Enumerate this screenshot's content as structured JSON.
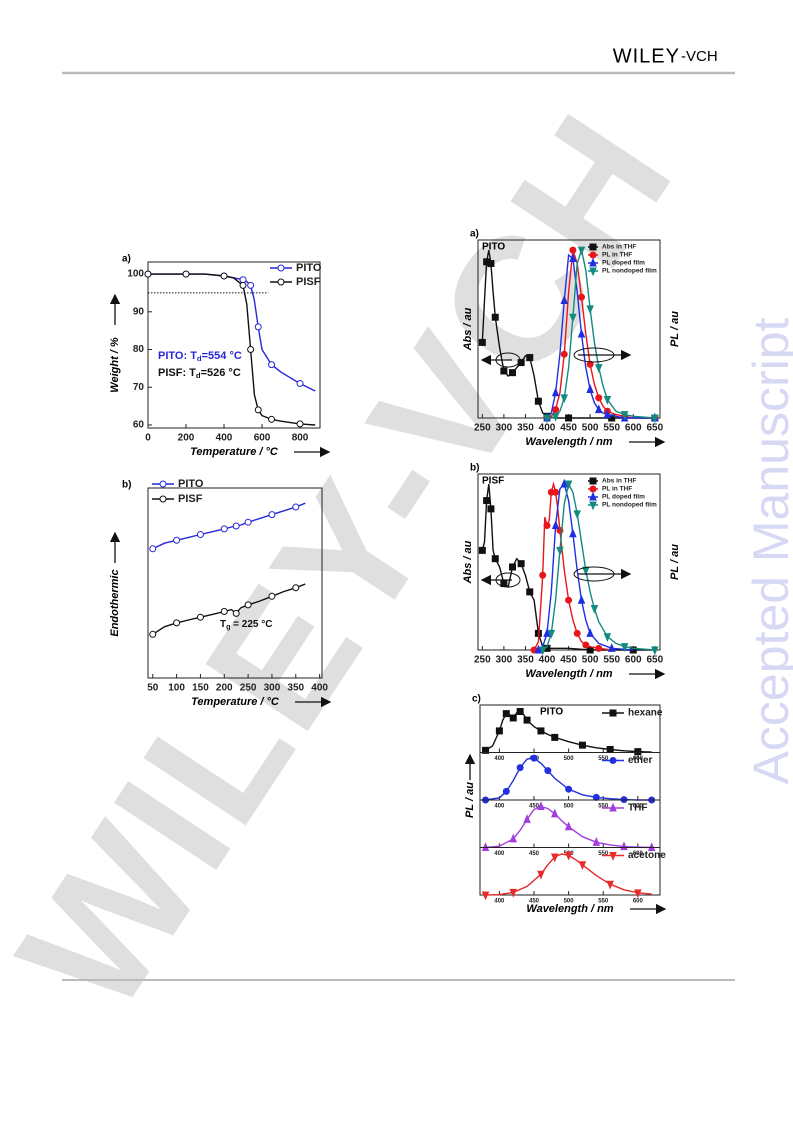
{
  "header": {
    "publisher": "WILEY",
    "suffix": "-VCH"
  },
  "watermark": {
    "text": "WILEY-VCH",
    "side": "Accepted Manuscript"
  },
  "chart_data": [
    {
      "type": "line",
      "panel": "a)",
      "xlabel": "Temperature / °C",
      "ylabel": "Weight / %",
      "xlim": [
        0,
        905
      ],
      "xticks": [
        0,
        200,
        400,
        600,
        800
      ],
      "ylim": [
        59.2,
        103.2
      ],
      "yticks": [
        60,
        70,
        80,
        90,
        100
      ],
      "reference_line": 95,
      "legend": "upper right",
      "series": [
        {
          "name": "PITO",
          "color": "#2727d8",
          "marker": "circle",
          "x": [
            0,
            100,
            200,
            300,
            400,
            450,
            500,
            520,
            540,
            560,
            580,
            600,
            650,
            700,
            800,
            880
          ],
          "values": [
            100,
            100,
            100,
            100,
            99.5,
            99,
            98.5,
            98,
            97,
            93,
            86,
            80,
            76,
            74,
            71,
            69
          ]
        },
        {
          "name": "PISF",
          "color": "#111111",
          "marker": "circle",
          "x": [
            0,
            100,
            200,
            300,
            400,
            450,
            500,
            520,
            540,
            560,
            580,
            600,
            650,
            700,
            800,
            880
          ],
          "values": [
            100,
            100,
            100,
            100,
            99.5,
            99,
            97,
            92,
            80,
            68,
            64,
            62.5,
            61.5,
            61,
            60.3,
            60
          ]
        }
      ],
      "annotations": [
        {
          "text": "PITO: T",
          "sub": "d",
          "rest": "=554 °C",
          "color": "#2727d8"
        },
        {
          "text": "PISF: T",
          "sub": "d",
          "rest": "=526 °C",
          "color": "#111111"
        }
      ]
    },
    {
      "type": "line",
      "panel": "b)",
      "xlabel": "Temperature / °C",
      "ylabel": "Endothermic",
      "xlim": [
        40,
        405
      ],
      "xticks": [
        50,
        100,
        150,
        200,
        250,
        300,
        350,
        400
      ],
      "ylim": [
        0,
        10
      ],
      "legend": "upper left",
      "series": [
        {
          "name": "PITO",
          "color": "#2727d8",
          "marker": "circle",
          "x": [
            50,
            75,
            100,
            125,
            150,
            175,
            200,
            215,
            225,
            235,
            250,
            275,
            300,
            325,
            350,
            370
          ],
          "values": [
            6.8,
            7.1,
            7.25,
            7.4,
            7.55,
            7.7,
            7.85,
            7.95,
            8.0,
            8.05,
            8.2,
            8.4,
            8.6,
            8.8,
            9.0,
            9.2
          ]
        },
        {
          "name": "PISF",
          "color": "#111111",
          "marker": "circle",
          "x": [
            50,
            75,
            100,
            125,
            150,
            175,
            200,
            215,
            225,
            235,
            250,
            275,
            300,
            325,
            350,
            370
          ],
          "values": [
            2.3,
            2.7,
            2.9,
            3.05,
            3.2,
            3.35,
            3.5,
            3.6,
            3.4,
            3.7,
            3.85,
            4.05,
            4.3,
            4.55,
            4.75,
            4.95
          ]
        }
      ],
      "annotations": [
        {
          "text": "T",
          "sub": "g",
          "rest": " = 225 °C",
          "color": "#111111"
        }
      ]
    },
    {
      "type": "line",
      "panel": "a)",
      "name": "PITO",
      "xlabel": "Wavelength / nm",
      "ylabel": "Abs / au",
      "y2label": "PL / au",
      "xlim": [
        240,
        662
      ],
      "xticks": [
        250,
        300,
        350,
        400,
        450,
        500,
        550,
        600,
        650
      ],
      "ylim": [
        0,
        1.06
      ],
      "legend": "upper right",
      "series": [
        {
          "name": "Abs in THF",
          "color": "#111111",
          "marker": "square",
          "x": [
            250,
            255,
            260,
            265,
            270,
            275,
            280,
            290,
            300,
            310,
            320,
            330,
            340,
            350,
            360,
            370,
            380,
            390,
            400,
            420,
            450,
            500,
            550,
            600,
            650
          ],
          "values": [
            0.45,
            0.7,
            0.93,
            1.0,
            0.92,
            0.75,
            0.6,
            0.42,
            0.28,
            0.25,
            0.27,
            0.3,
            0.33,
            0.37,
            0.36,
            0.25,
            0.1,
            0.03,
            0.01,
            0,
            0,
            0,
            0,
            0,
            0
          ]
        },
        {
          "name": "PL in THF",
          "color": "#e8161b",
          "marker": "circle",
          "x": [
            400,
            410,
            420,
            430,
            440,
            450,
            460,
            470,
            480,
            490,
            500,
            510,
            520,
            530,
            540,
            560,
            580,
            600,
            650
          ],
          "values": [
            0,
            0.01,
            0.05,
            0.15,
            0.38,
            0.75,
            1.0,
            0.92,
            0.72,
            0.5,
            0.32,
            0.2,
            0.12,
            0.07,
            0.04,
            0.02,
            0.01,
            0,
            0
          ]
        },
        {
          "name": "PL doped film",
          "color": "#1f2fe0",
          "marker": "triangle-up",
          "x": [
            400,
            410,
            420,
            430,
            440,
            450,
            460,
            470,
            480,
            490,
            500,
            510,
            520,
            530,
            540,
            560,
            580,
            600,
            650
          ],
          "values": [
            0,
            0.03,
            0.15,
            0.38,
            0.7,
            0.97,
            0.95,
            0.75,
            0.5,
            0.3,
            0.17,
            0.09,
            0.05,
            0.03,
            0.02,
            0.01,
            0,
            0,
            0
          ]
        },
        {
          "name": "PL nondoped film",
          "color": "#138a80",
          "marker": "triangle-down",
          "x": [
            400,
            410,
            420,
            430,
            440,
            450,
            460,
            470,
            480,
            490,
            500,
            510,
            520,
            530,
            540,
            560,
            580,
            600,
            650
          ],
          "values": [
            0,
            0,
            0.01,
            0.04,
            0.12,
            0.3,
            0.6,
            0.92,
            1.0,
            0.88,
            0.65,
            0.45,
            0.3,
            0.19,
            0.11,
            0.04,
            0.02,
            0.01,
            0
          ]
        }
      ]
    },
    {
      "type": "line",
      "panel": "b)",
      "name": "PISF",
      "xlabel": "Wavelength / nm",
      "ylabel": "Abs / au",
      "y2label": "PL / au",
      "xlim": [
        240,
        662
      ],
      "xticks": [
        250,
        300,
        350,
        400,
        450,
        500,
        550,
        600,
        650
      ],
      "ylim": [
        0,
        1.06
      ],
      "legend": "upper right",
      "series": [
        {
          "name": "Abs in THF",
          "color": "#111111",
          "marker": "square",
          "x": [
            250,
            255,
            260,
            265,
            270,
            275,
            280,
            290,
            300,
            310,
            320,
            330,
            340,
            350,
            360,
            370,
            380,
            390,
            400,
            450,
            500,
            550,
            600,
            650
          ],
          "values": [
            0.6,
            0.65,
            0.9,
            1.0,
            0.85,
            0.6,
            0.55,
            0.5,
            0.4,
            0.38,
            0.5,
            0.55,
            0.52,
            0.45,
            0.35,
            0.3,
            0.1,
            0.02,
            0.01,
            0.01,
            0,
            0,
            0,
            0
          ]
        },
        {
          "name": "PL in THF",
          "color": "#e8161b",
          "marker": "circle",
          "x": [
            370,
            380,
            390,
            395,
            400,
            405,
            410,
            415,
            420,
            425,
            430,
            440,
            450,
            460,
            470,
            480,
            490,
            500,
            520,
            550
          ],
          "values": [
            0,
            0.05,
            0.45,
            0.8,
            0.75,
            0.78,
            0.95,
            1.0,
            0.95,
            0.85,
            0.72,
            0.48,
            0.3,
            0.18,
            0.1,
            0.05,
            0.03,
            0.02,
            0.01,
            0
          ]
        },
        {
          "name": "PL doped film",
          "color": "#1f2fe0",
          "marker": "triangle-up",
          "x": [
            380,
            390,
            400,
            410,
            420,
            430,
            440,
            450,
            460,
            470,
            480,
            490,
            500,
            520,
            550,
            600
          ],
          "values": [
            0,
            0.02,
            0.1,
            0.35,
            0.75,
            0.97,
            1.0,
            0.9,
            0.7,
            0.48,
            0.3,
            0.18,
            0.1,
            0.04,
            0.01,
            0
          ]
        },
        {
          "name": "PL nondoped film",
          "color": "#138a80",
          "marker": "triangle-down",
          "x": [
            390,
            400,
            410,
            420,
            430,
            440,
            450,
            460,
            470,
            480,
            490,
            500,
            510,
            520,
            540,
            560,
            580,
            600,
            650
          ],
          "values": [
            0,
            0.02,
            0.1,
            0.3,
            0.6,
            0.88,
            1.0,
            0.95,
            0.82,
            0.65,
            0.48,
            0.35,
            0.25,
            0.17,
            0.08,
            0.04,
            0.02,
            0.01,
            0
          ]
        }
      ]
    },
    {
      "type": "panels",
      "panel": "c)",
      "name": "PITO",
      "xlabel": "Wavelength / nm",
      "ylabel": "PL / au",
      "xlim": [
        372,
        632
      ],
      "xticks": [
        400,
        450,
        500,
        550,
        600
      ],
      "ylim": [
        0,
        1.1
      ],
      "legend": "upper right",
      "series": [
        {
          "name": "hexane",
          "color": "#111111",
          "marker": "square",
          "x": [
            380,
            390,
            400,
            405,
            410,
            415,
            420,
            425,
            430,
            435,
            440,
            450,
            460,
            470,
            480,
            500,
            520,
            540,
            560,
            580,
            600,
            620
          ],
          "values": [
            0.05,
            0.15,
            0.5,
            0.75,
            0.9,
            0.85,
            0.8,
            0.92,
            0.95,
            0.88,
            0.75,
            0.6,
            0.5,
            0.42,
            0.35,
            0.25,
            0.17,
            0.11,
            0.07,
            0.04,
            0.02,
            0.01
          ]
        },
        {
          "name": "ether",
          "color": "#2330e0",
          "marker": "circle",
          "x": [
            380,
            400,
            410,
            420,
            430,
            440,
            450,
            460,
            470,
            480,
            500,
            520,
            540,
            560,
            580,
            600,
            620
          ],
          "values": [
            0,
            0.05,
            0.2,
            0.45,
            0.75,
            0.95,
            0.97,
            0.85,
            0.68,
            0.5,
            0.25,
            0.12,
            0.06,
            0.03,
            0.01,
            0,
            0
          ]
        },
        {
          "name": "THF",
          "color": "#a23ee0",
          "marker": "triangle-up",
          "x": [
            380,
            400,
            420,
            430,
            440,
            450,
            460,
            470,
            480,
            490,
            500,
            520,
            540,
            560,
            580,
            600,
            620
          ],
          "values": [
            0,
            0.03,
            0.2,
            0.4,
            0.65,
            0.88,
            0.95,
            0.9,
            0.78,
            0.62,
            0.48,
            0.25,
            0.12,
            0.06,
            0.02,
            0.01,
            0
          ]
        },
        {
          "name": "acetone",
          "color": "#e82a2a",
          "marker": "triangle-down",
          "x": [
            380,
            400,
            420,
            440,
            460,
            470,
            480,
            490,
            500,
            510,
            520,
            540,
            560,
            580,
            600,
            620
          ],
          "values": [
            0,
            0.01,
            0.06,
            0.2,
            0.48,
            0.7,
            0.88,
            0.95,
            0.92,
            0.82,
            0.7,
            0.45,
            0.25,
            0.12,
            0.05,
            0.02
          ]
        }
      ]
    }
  ]
}
